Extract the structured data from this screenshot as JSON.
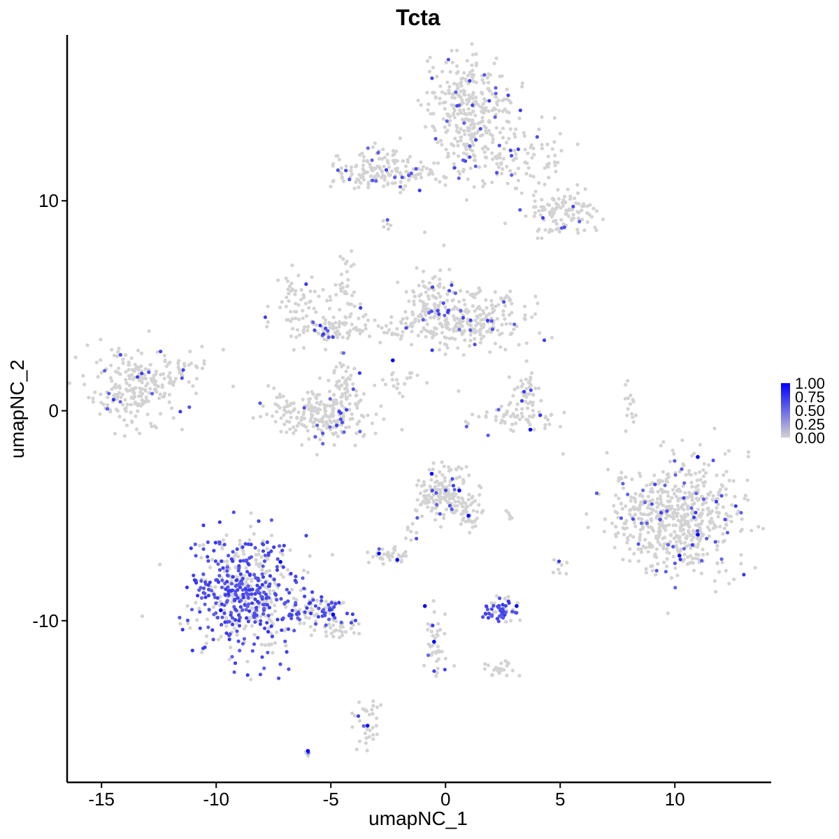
{
  "chart_data": {
    "type": "scatter",
    "title": "Tcta",
    "xlabel": "umapNC_1",
    "ylabel": "umapNC_2",
    "xlim": [
      -16.5,
      14.2
    ],
    "ylim": [
      -17.7,
      17.9
    ],
    "x_ticks": [
      -15,
      -10,
      -5,
      0,
      5,
      10
    ],
    "x_tick_labels": [
      "-15",
      "-10",
      "-5",
      "0",
      "5",
      "10"
    ],
    "y_ticks": [
      -10,
      0,
      10
    ],
    "y_tick_labels": [
      "-10",
      "0",
      "10"
    ],
    "grid": false,
    "legend_position": "right",
    "color_scale": {
      "low_color": "#d3d3d3",
      "high_color": "#0000ff",
      "min": 0,
      "max": 1,
      "ticks": [
        1.0,
        0.75,
        0.5,
        0.25,
        0.0
      ],
      "tick_labels": [
        "1.00",
        "0.75",
        "0.50",
        "0.25",
        "0.00"
      ]
    },
    "clusters": [
      {
        "cx": -13.5,
        "cy": 1.1,
        "sx": 1.0,
        "sy": 0.9,
        "n": 230
      },
      {
        "cx": -11.5,
        "cy": 1.9,
        "sx": 0.5,
        "sy": 0.5,
        "n": 30
      },
      {
        "cx": -8.8,
        "cy": -8.6,
        "sx": 1.1,
        "sy": 1.4,
        "n": 560
      },
      {
        "cx": -5.6,
        "cy": -9.6,
        "sx": 0.9,
        "sy": 0.4,
        "n": 90
      },
      {
        "cx": -4.6,
        "cy": -10.3,
        "sx": 0.5,
        "sy": 0.3,
        "n": 30
      },
      {
        "cx": -3.4,
        "cy": -14.7,
        "sx": 0.25,
        "sy": 0.6,
        "n": 35
      },
      {
        "cx": -6.0,
        "cy": -16.3,
        "sx": 0.1,
        "sy": 0.1,
        "n": 5
      },
      {
        "cx": -6.4,
        "cy": 5.1,
        "sx": 0.6,
        "sy": 0.7,
        "n": 60
      },
      {
        "cx": -5.0,
        "cy": 3.9,
        "sx": 1.0,
        "sy": 0.3,
        "n": 80
      },
      {
        "cx": -4.5,
        "cy": 5.5,
        "sx": 0.3,
        "sy": 1.0,
        "n": 40
      },
      {
        "cx": -5.2,
        "cy": -0.1,
        "sx": 1.2,
        "sy": 0.6,
        "n": 230
      },
      {
        "cx": -4.4,
        "cy": 1.5,
        "sx": 0.4,
        "sy": 0.9,
        "n": 50
      },
      {
        "cx": -3.0,
        "cy": 11.5,
        "sx": 1.0,
        "sy": 0.5,
        "n": 140
      },
      {
        "cx": -0.7,
        "cy": 11.2,
        "sx": 0.8,
        "sy": 0.2,
        "n": 30
      },
      {
        "cx": 1.1,
        "cy": 14.2,
        "sx": 0.9,
        "sy": 1.4,
        "n": 340
      },
      {
        "cx": 3.3,
        "cy": 12.0,
        "sx": 1.0,
        "sy": 0.8,
        "n": 90
      },
      {
        "cx": 5.1,
        "cy": 9.4,
        "sx": 0.8,
        "sy": 0.5,
        "n": 110
      },
      {
        "cx": -2.6,
        "cy": 8.9,
        "sx": 0.1,
        "sy": 0.2,
        "n": 6
      },
      {
        "cx": -0.7,
        "cy": 5.2,
        "sx": 0.5,
        "sy": 1.0,
        "n": 90
      },
      {
        "cx": 1.2,
        "cy": 4.3,
        "sx": 1.2,
        "sy": 0.6,
        "n": 240
      },
      {
        "cx": -1.8,
        "cy": 3.9,
        "sx": 0.7,
        "sy": 0.4,
        "n": 40
      },
      {
        "cx": -2.0,
        "cy": 1.3,
        "sx": 0.6,
        "sy": 0.4,
        "n": 20
      },
      {
        "cx": 3.4,
        "cy": -0.4,
        "sx": 0.9,
        "sy": 0.3,
        "n": 60
      },
      {
        "cx": 3.5,
        "cy": 0.8,
        "sx": 0.3,
        "sy": 0.6,
        "n": 40
      },
      {
        "cx": 8.0,
        "cy": 0.3,
        "sx": 0.15,
        "sy": 0.5,
        "n": 15
      },
      {
        "cx": 0.0,
        "cy": -4.0,
        "sx": 0.6,
        "sy": 0.7,
        "n": 170
      },
      {
        "cx": 1.1,
        "cy": -5.0,
        "sx": 0.2,
        "sy": 0.4,
        "n": 30
      },
      {
        "cx": -2.5,
        "cy": -6.9,
        "sx": 0.4,
        "sy": 0.25,
        "n": 40
      },
      {
        "cx": -1.6,
        "cy": -5.9,
        "sx": 0.2,
        "sy": 0.3,
        "n": 8
      },
      {
        "cx": 2.4,
        "cy": -9.5,
        "sx": 0.4,
        "sy": 0.3,
        "n": 60
      },
      {
        "cx": -0.5,
        "cy": -11.0,
        "sx": 0.25,
        "sy": 1.0,
        "n": 40
      },
      {
        "cx": 2.3,
        "cy": -12.3,
        "sx": 0.4,
        "sy": 0.2,
        "n": 25
      },
      {
        "cx": 5.0,
        "cy": -7.4,
        "sx": 0.2,
        "sy": 0.2,
        "n": 10
      },
      {
        "cx": 2.8,
        "cy": -5.0,
        "sx": 0.2,
        "sy": 0.1,
        "n": 5
      },
      {
        "cx": 10.2,
        "cy": -5.0,
        "sx": 1.5,
        "sy": 1.4,
        "n": 560
      },
      {
        "cx": 8.8,
        "cy": -4.8,
        "sx": 0.5,
        "sy": 0.5,
        "n": 40
      }
    ],
    "highlights": [
      {
        "x": -9.8,
        "y": -9.5,
        "v": 1.0
      },
      {
        "x": -7.2,
        "y": -7.2,
        "v": 1.0
      },
      {
        "x": -4.9,
        "y": -9.7,
        "v": 1.0
      },
      {
        "x": -3.4,
        "y": -15.0,
        "v": 0.95
      },
      {
        "x": -6.0,
        "y": -16.2,
        "v": 1.0
      },
      {
        "x": -2.9,
        "y": -6.8,
        "v": 0.95
      },
      {
        "x": -2.1,
        "y": -7.1,
        "v": 0.95
      },
      {
        "x": -2.3,
        "y": 2.4,
        "v": 1.0
      },
      {
        "x": -0.9,
        "y": -9.3,
        "v": 1.0
      },
      {
        "x": -0.5,
        "y": -11.0,
        "v": 1.0
      },
      {
        "x": -0.6,
        "y": -3.0,
        "v": 0.95
      },
      {
        "x": 0.6,
        "y": -3.8,
        "v": 1.0
      },
      {
        "x": 1.0,
        "y": -5.0,
        "v": 0.95
      },
      {
        "x": 3.1,
        "y": -9.3,
        "v": 1.0
      },
      {
        "x": 3.7,
        "y": -0.9,
        "v": 1.0
      },
      {
        "x": 10.2,
        "y": -6.9,
        "v": 1.0
      },
      {
        "x": 11.0,
        "y": -2.2,
        "v": 1.0
      },
      {
        "x": 11.0,
        "y": -5.9,
        "v": 1.0
      }
    ]
  }
}
